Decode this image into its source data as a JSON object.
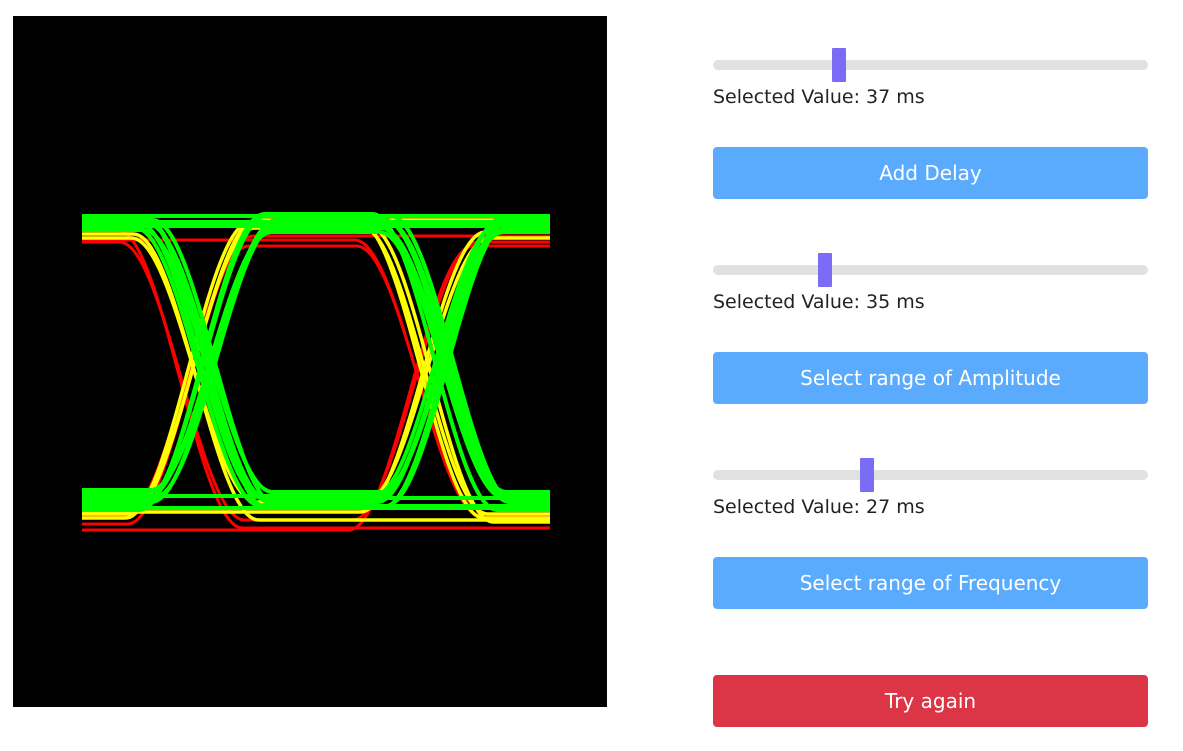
{
  "sliders": [
    {
      "value_label": "Selected Value: 37 ms",
      "fraction": 0.29
    },
    {
      "value_label": "Selected Value: 35 ms",
      "fraction": 0.258
    },
    {
      "value_label": "Selected Value: 27 ms",
      "fraction": 0.354
    }
  ],
  "buttons": {
    "add_delay": "Add Delay",
    "amplitude": "Select range of Amplitude",
    "frequency": "Select range of Frequency",
    "try_again": "Try again"
  },
  "eye_diagram": {
    "colors": [
      "#ff0000",
      "#ffff00",
      "#00ff00"
    ],
    "background": "#000000"
  }
}
